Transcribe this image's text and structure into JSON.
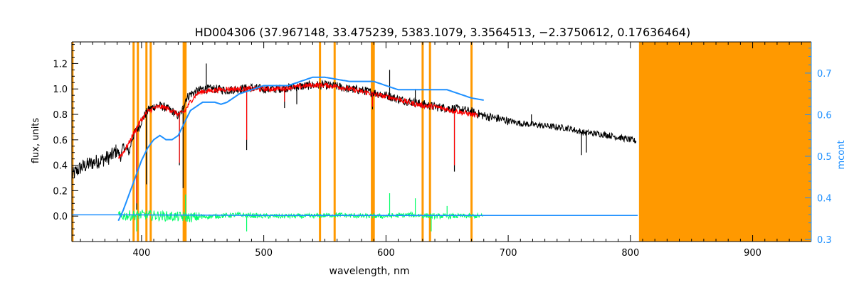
{
  "chart_data": {
    "type": "line",
    "title": "HD004306   (37.967148, 33.475239, 5383.1079, 3.3564513, −2.3750612, 0.17636464)",
    "xlabel": "wavelength, nm",
    "ylabel": "flux, units",
    "ylabel_right": "mcont",
    "xlim": [
      343,
      948
    ],
    "ylim": [
      -0.2,
      1.37
    ],
    "ylim_right": [
      0.295,
      0.775
    ],
    "x_ticks": [
      400,
      500,
      600,
      700,
      800,
      900
    ],
    "y_ticks": [
      0.0,
      0.2,
      0.4,
      0.6,
      0.8,
      1.0,
      1.2
    ],
    "y_ticks_right": [
      0.3,
      0.4,
      0.5,
      0.6,
      0.7
    ],
    "colors": {
      "observed": "#000000",
      "model": "#ff0000",
      "mcont": "#1e90ff",
      "residuals": "#00ff66",
      "mask": "#ff9900",
      "axis": "#000000",
      "right_axis": "#1e90ff"
    },
    "masked_lines_nm": [
      343.5,
      393.5,
      397.0,
      404.0,
      407.5,
      434.5,
      436.0,
      546.0,
      558.0,
      588.5,
      590.0,
      630.0,
      636.0,
      670.0
    ],
    "masked_region_nm": [
      807,
      948
    ],
    "series": [
      {
        "x": [
          343,
          350,
          360,
          370,
          375,
          380,
          383,
          385,
          388,
          390,
          392,
          394,
          396,
          398,
          400,
          403,
          406,
          410,
          414,
          418,
          422,
          426,
          428,
          430,
          432,
          434,
          436,
          440,
          445,
          450,
          460,
          470,
          480,
          490,
          500,
          510,
          520,
          530,
          540,
          550,
          560,
          570,
          580,
          590,
          600,
          610,
          620,
          630,
          640,
          650,
          660,
          670,
          680,
          690,
          700,
          710,
          720,
          730,
          740,
          750,
          760,
          770,
          780,
          790,
          800,
          805
        ],
        "y": [
          0.32,
          0.38,
          0.42,
          0.45,
          0.47,
          0.52,
          0.46,
          0.55,
          0.52,
          0.5,
          0.6,
          0.65,
          0.68,
          0.7,
          0.75,
          0.8,
          0.84,
          0.86,
          0.87,
          0.86,
          0.84,
          0.82,
          0.8,
          0.79,
          0.8,
          0.85,
          0.92,
          0.96,
          0.98,
          1.0,
          1.0,
          0.99,
          1.0,
          1.01,
          1.0,
          1.0,
          1.01,
          1.02,
          1.03,
          1.03,
          1.02,
          1.0,
          0.99,
          0.97,
          0.95,
          0.92,
          0.9,
          0.88,
          0.86,
          0.85,
          0.84,
          0.82,
          0.79,
          0.77,
          0.75,
          0.73,
          0.72,
          0.71,
          0.7,
          0.69,
          0.66,
          0.65,
          0.64,
          0.62,
          0.6,
          0.59
        ]
      },
      {
        "x": [
          381,
          385,
          390,
          395,
          400,
          405,
          410,
          415,
          420,
          425,
          430,
          435,
          440,
          445,
          450,
          460,
          470,
          480,
          490,
          500,
          510,
          520,
          530,
          540,
          550,
          560,
          570,
          580,
          590,
          600,
          610,
          620,
          630,
          640,
          650,
          660,
          670,
          675
        ],
        "y": [
          0.46,
          0.5,
          0.58,
          0.68,
          0.76,
          0.82,
          0.85,
          0.86,
          0.85,
          0.83,
          0.8,
          0.82,
          0.9,
          0.96,
          0.98,
          0.99,
          1.0,
          1.0,
          1.0,
          1.0,
          1.0,
          1.01,
          1.02,
          1.03,
          1.03,
          1.02,
          1.0,
          0.98,
          0.96,
          0.94,
          0.92,
          0.89,
          0.87,
          0.86,
          0.84,
          0.82,
          0.8,
          0.79
        ]
      },
      {
        "x": [
          381,
          385,
          390,
          395,
          400,
          405,
          410,
          415,
          420,
          425,
          430,
          435,
          440,
          445,
          450,
          455,
          460,
          465,
          470,
          480,
          490,
          500,
          510,
          520,
          530,
          540,
          550,
          560,
          570,
          580,
          590,
          600,
          610,
          620,
          630,
          640,
          650,
          660,
          670,
          680
        ],
        "y": [
          0.345,
          0.37,
          0.41,
          0.45,
          0.49,
          0.52,
          0.54,
          0.55,
          0.54,
          0.54,
          0.55,
          0.58,
          0.61,
          0.62,
          0.63,
          0.63,
          0.63,
          0.625,
          0.63,
          0.65,
          0.66,
          0.67,
          0.67,
          0.67,
          0.68,
          0.69,
          0.69,
          0.685,
          0.68,
          0.68,
          0.68,
          0.67,
          0.66,
          0.66,
          0.66,
          0.66,
          0.66,
          0.65,
          0.64,
          0.635
        ]
      },
      {
        "x": [
          381,
          400,
          420,
          440,
          460,
          480,
          500,
          520,
          540,
          560,
          580,
          600,
          620,
          640,
          660,
          680
        ],
        "y": [
          0.0,
          0.01,
          0.0,
          -0.01,
          0.0,
          0.01,
          0.0,
          0.0,
          0.0,
          0.01,
          0.0,
          0.0,
          0.01,
          0.0,
          0.0,
          0.0
        ]
      },
      {
        "x": [
          343,
          381,
          500,
          600,
          700,
          806
        ],
        "y": [
          0.01,
          0.01,
          0.005,
          0.005,
          0.005,
          0.005
        ]
      }
    ],
    "annotations": []
  }
}
